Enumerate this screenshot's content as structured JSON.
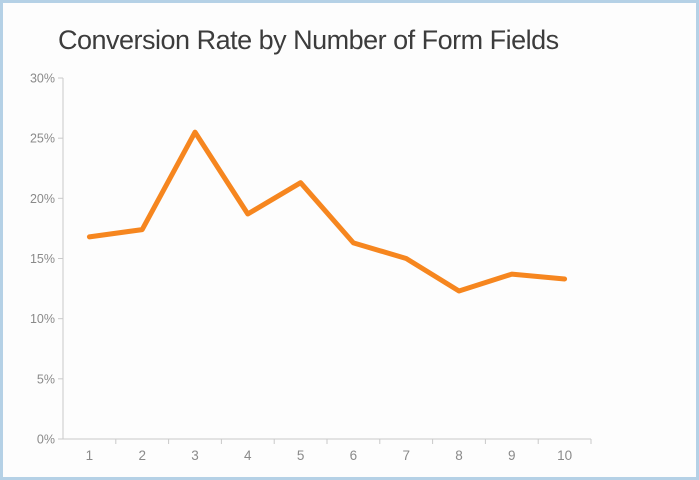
{
  "window": {
    "background_color": "#fdfdfd",
    "border_color": "#b5d1e6"
  },
  "chart_data": {
    "type": "line",
    "title": "Conversion Rate by Number of Form Fields",
    "categories": [
      "1",
      "2",
      "3",
      "4",
      "5",
      "6",
      "7",
      "8",
      "9",
      "10"
    ],
    "values": [
      16.8,
      17.4,
      25.5,
      18.7,
      21.3,
      16.3,
      15.0,
      12.3,
      13.7,
      13.3
    ],
    "xlabel": "",
    "ylabel": "",
    "ylim": [
      0,
      30
    ],
    "y_ticks": [
      0,
      5,
      10,
      15,
      20,
      25,
      30
    ],
    "y_tick_labels": [
      "0%",
      "5%",
      "10%",
      "15%",
      "20%",
      "25%",
      "30%"
    ],
    "grid": false,
    "legend": false,
    "line_color": "#F6861F",
    "line_width": 5,
    "axis_color": "#C9C9C9",
    "tick_label_color": "#8A8A8A",
    "title_color": "#3C3C3C"
  }
}
